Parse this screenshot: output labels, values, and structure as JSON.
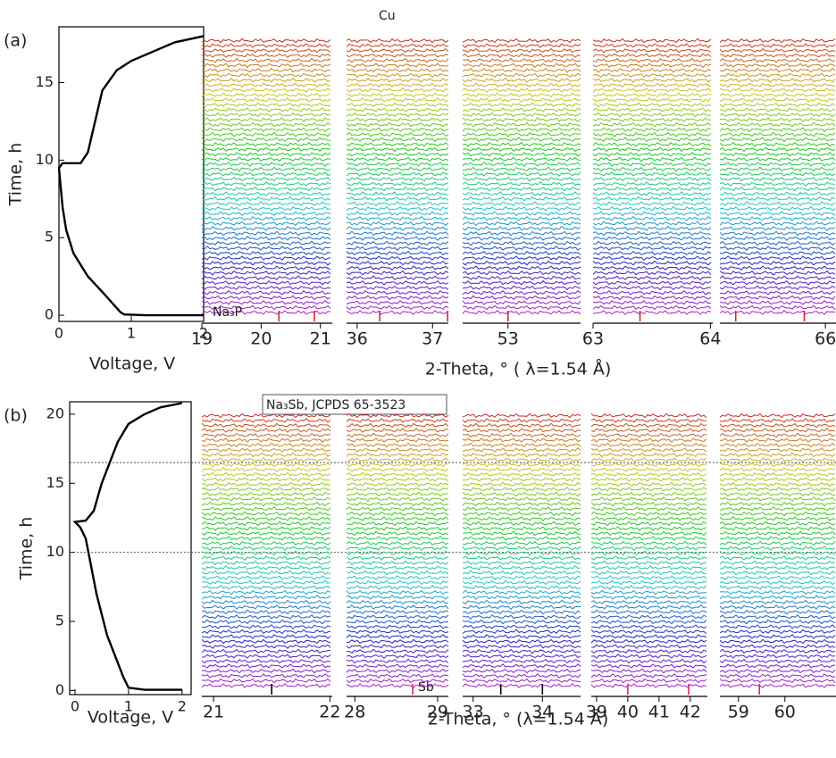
{
  "chart_data": [
    {
      "type": "line",
      "panel_label": "(a)",
      "xlabel": "Voltage, V",
      "ylabel": "Time, h",
      "xlim": [
        0,
        2
      ],
      "ylim": [
        -0.4,
        18.6
      ],
      "xticks": [
        0,
        1,
        2
      ],
      "yticks": [
        0,
        5,
        10,
        15
      ],
      "color": "#000000",
      "x": [
        2.0,
        1.2,
        0.9,
        0.85,
        0.6,
        0.4,
        0.2,
        0.1,
        0.05,
        0.0,
        0.05,
        0.3,
        0.4,
        0.5,
        0.6,
        0.8,
        1.0,
        1.3,
        1.6,
        2.0
      ],
      "values": [
        0,
        0,
        0.05,
        0.2,
        1.5,
        2.5,
        4,
        5.5,
        7,
        9.5,
        9.8,
        9.8,
        10.5,
        12.5,
        14.5,
        15.8,
        16.4,
        17,
        17.6,
        18
      ]
    },
    {
      "type": "waterfall",
      "xlim": [
        19,
        21.2
      ],
      "xticks": [
        19,
        20,
        21
      ],
      "marker_color": "#e0202a",
      "markers": [
        20.3,
        20.9
      ],
      "annotation": "Na₃P"
    },
    {
      "type": "waterfall",
      "xlim": [
        35.86,
        37.21
      ],
      "xticks": [
        36,
        37
      ],
      "marker_color": "#e0202a",
      "markers": [
        36.3,
        37.2
      ],
      "annotation": "Cu"
    },
    {
      "type": "waterfall",
      "xlim": [
        52.5,
        53.8
      ],
      "xticks": [
        53
      ],
      "marker_color": "#e0202a",
      "markers": [
        53.0
      ]
    },
    {
      "type": "waterfall",
      "xlim": [
        63,
        64.02
      ],
      "xticks": [
        63,
        64
      ],
      "marker_color": "#e0202a",
      "markers": [
        63.4
      ]
    },
    {
      "type": "waterfall",
      "xlim": [
        65.0,
        66.1
      ],
      "xticks": [
        66
      ],
      "marker_color": "#e0202a",
      "markers": [
        65.15,
        65.8
      ],
      "xlabel": "2-Theta, ° ( λ=1.54 Å)"
    },
    {
      "type": "line",
      "panel_label": "(b)",
      "xlabel": "Voltage, V",
      "ylabel": "Time, h",
      "xlim": [
        -0.1,
        2.17
      ],
      "ylim": [
        -0.3,
        20.9
      ],
      "xticks": [
        0,
        1,
        2
      ],
      "yticks": [
        0,
        5,
        10,
        15,
        20
      ],
      "color": "#000000",
      "hlines": [
        16.5,
        10
      ],
      "x": [
        2.0,
        1.3,
        1.0,
        0.9,
        0.6,
        0.4,
        0.3,
        0.2,
        0.1,
        0.0,
        0.2,
        0.35,
        0.5,
        0.7,
        0.8,
        1.0,
        1.3,
        1.6,
        2.0
      ],
      "values": [
        0.05,
        0.05,
        0.2,
        1,
        4,
        7,
        9,
        11,
        11.8,
        12.2,
        12.3,
        13,
        15,
        17,
        18,
        19.3,
        20,
        20.5,
        20.8
      ]
    },
    {
      "type": "waterfall",
      "xlim": [
        20.9,
        22.02
      ],
      "xticks": [
        21,
        22
      ],
      "marker_color": "#000000",
      "markers": [
        21.5
      ],
      "annotation": "Na₃Sb, JCPDS 65-3523"
    },
    {
      "type": "waterfall",
      "xlim": [
        27.9,
        29.13
      ],
      "xticks": [
        28,
        29
      ],
      "marker_color": "#e0207a",
      "markers": [
        28.7
      ],
      "annotation": "Sb"
    },
    {
      "type": "waterfall",
      "xlim": [
        32.85,
        34.55
      ],
      "xticks": [
        33,
        34
      ],
      "marker_color": "#000000",
      "markers": [
        33.4,
        34.0
      ]
    },
    {
      "type": "waterfall",
      "xlim": [
        38.83,
        42.55
      ],
      "xticks": [
        39,
        40,
        41,
        42
      ],
      "marker_color": "#e0207a",
      "markers": [
        40.0,
        41.95
      ]
    },
    {
      "type": "waterfall",
      "xlim": [
        58.6,
        61.1
      ],
      "xticks": [
        59,
        60
      ],
      "marker_color": "#e0207a",
      "markers": [
        59.45
      ],
      "xlabel": "2-Theta, ° (λ=1.54 Å)"
    }
  ]
}
